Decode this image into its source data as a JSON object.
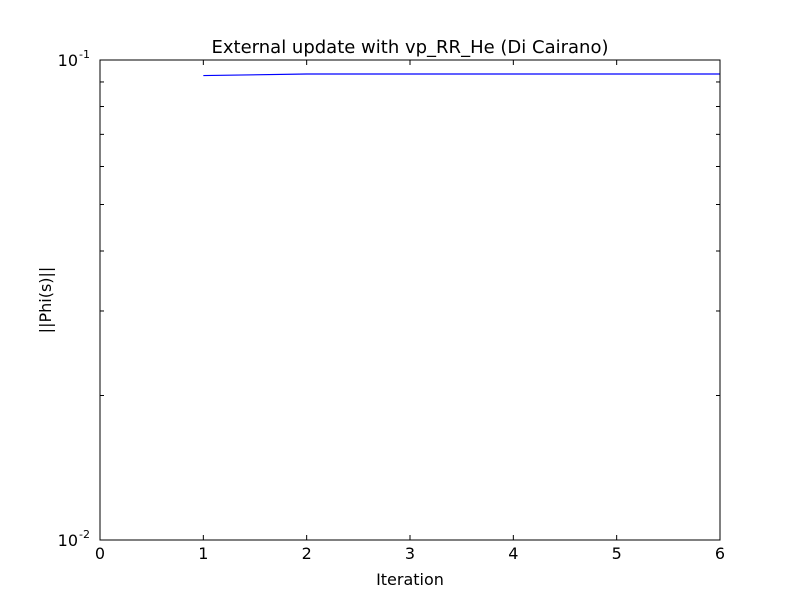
{
  "chart_data": {
    "type": "line",
    "title": "External update with vp_RR_He (Di Cairano)",
    "xlabel": "Iteration",
    "ylabel": "||Phi(s)||",
    "xlim": [
      0,
      6
    ],
    "ylim": [
      0.01,
      0.1
    ],
    "yscale": "log",
    "grid": false,
    "xticks": [
      "0",
      "1",
      "2",
      "3",
      "4",
      "5",
      "6"
    ],
    "yticks": [
      {
        "value": 0.01,
        "base": "10",
        "exp": "-2"
      },
      {
        "value": 0.1,
        "base": "10",
        "exp": "-1"
      }
    ],
    "series": [
      {
        "color": "#0000ff",
        "x": [
          1,
          2,
          3,
          4,
          5,
          6
        ],
        "y": [
          0.0928,
          0.0935,
          0.0935,
          0.0935,
          0.0935,
          0.0935
        ]
      }
    ]
  }
}
